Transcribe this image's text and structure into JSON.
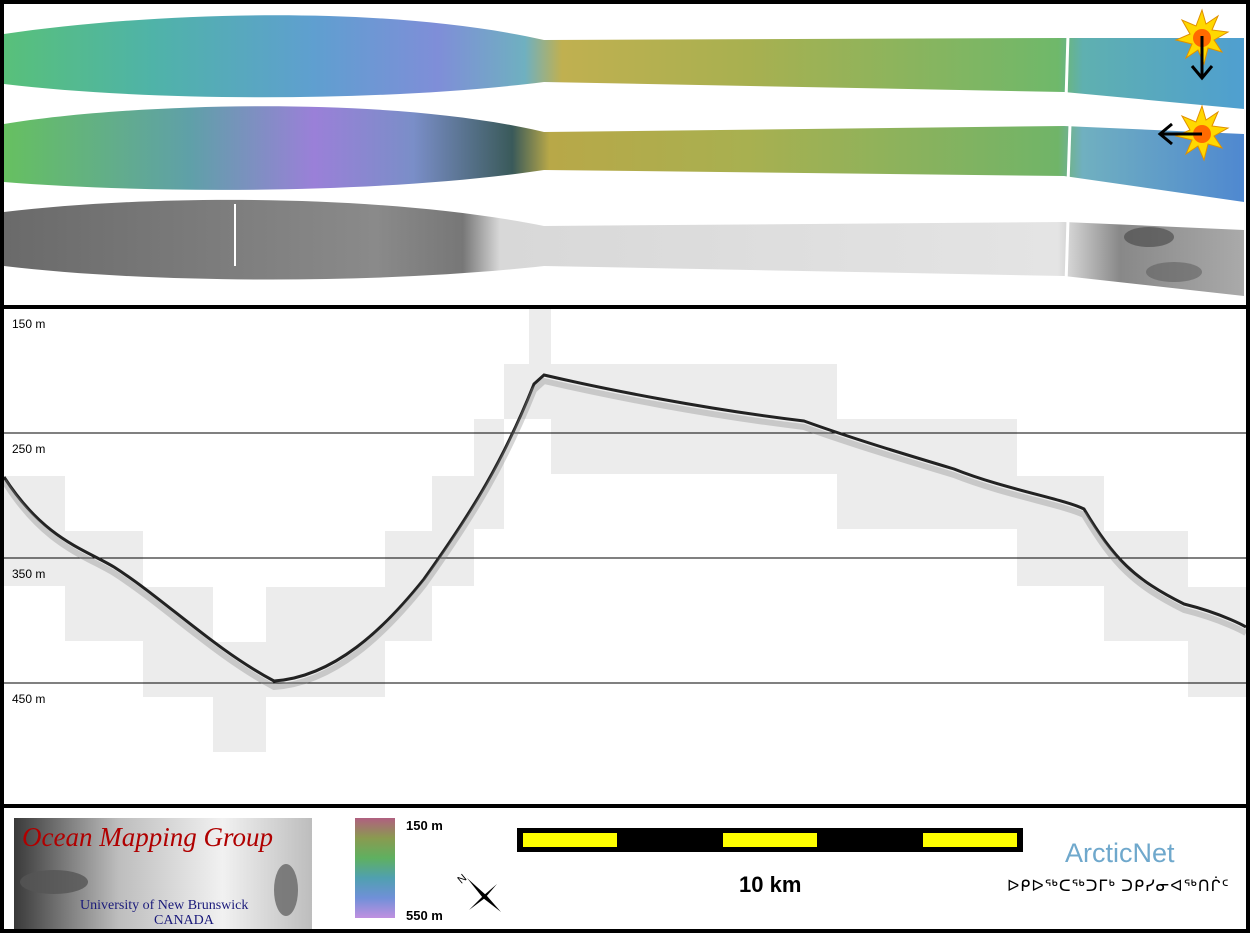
{
  "profile": {
    "depth_labels": [
      "150 m",
      "250 m",
      "350 m",
      "450 m"
    ]
  },
  "footer": {
    "logo": {
      "title": "Ocean Mapping Group",
      "university": "University of New Brunswick",
      "country": "CANADA"
    },
    "colorbar": {
      "top_label": "150 m",
      "bottom_label": "550 m"
    },
    "scalebar": {
      "label": "10 km"
    },
    "arcticnet": {
      "title": "ArcticNet",
      "subtitle": "ᐅᑭᐅᖅᑕᖅᑐᒥᒃ ᑐᑭᓯᓂᐊᖅᑎᒌᑦ"
    },
    "north_arrow_label": "N"
  },
  "colors": {
    "scalebar_yellow": "#ffff00",
    "arcticnet_blue": "#6fa8cc",
    "ocean_mapping_red": "#b00000"
  },
  "icons": [
    "sun-icon",
    "down-arrow-icon",
    "left-arrow-icon",
    "north-arrow-icon"
  ]
}
